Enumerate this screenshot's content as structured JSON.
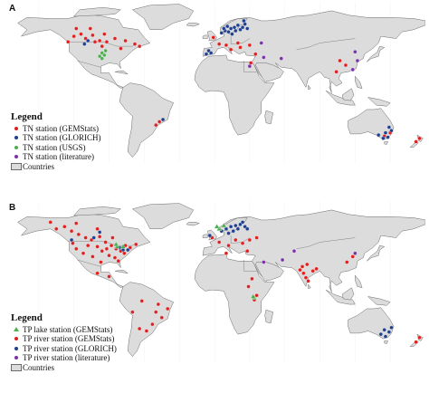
{
  "panel_a": {
    "label": "A",
    "legend_title": "Legend",
    "legend": [
      {
        "text": "TN station (GEMStats)",
        "color": "#e02020",
        "shape": "dot"
      },
      {
        "text": "TN station (GLORICH)",
        "color": "#1f3f8f",
        "shape": "dot"
      },
      {
        "text": "TN station (USGS)",
        "color": "#4caf50",
        "shape": "dot"
      },
      {
        "text": "TN station (literature)",
        "color": "#7b2fa8",
        "shape": "dot"
      },
      {
        "text": "Countries",
        "color": "#dcdcdc",
        "shape": "box"
      }
    ],
    "stations": [
      {
        "s": 0,
        "lon": -120,
        "lat": 54
      },
      {
        "s": 0,
        "lon": -114,
        "lat": 56
      },
      {
        "s": 0,
        "lon": -110,
        "lat": 52
      },
      {
        "s": 0,
        "lon": -104,
        "lat": 55
      },
      {
        "s": 0,
        "lon": -98,
        "lat": 50
      },
      {
        "s": 0,
        "lon": -118,
        "lat": 61
      },
      {
        "s": 0,
        "lon": -94,
        "lat": 56
      },
      {
        "s": 0,
        "lon": -106,
        "lat": 61
      },
      {
        "s": 0,
        "lon": -85,
        "lat": 52
      },
      {
        "s": 0,
        "lon": -76,
        "lat": 50
      },
      {
        "s": 0,
        "lon": -68,
        "lat": 47
      },
      {
        "s": 0,
        "lon": -64,
        "lat": 45
      },
      {
        "s": 0,
        "lon": -125,
        "lat": 49
      },
      {
        "s": 0,
        "lon": -92,
        "lat": 49
      },
      {
        "s": 0,
        "lon": -80,
        "lat": 43
      },
      {
        "s": 0,
        "lon": -102,
        "lat": 49
      },
      {
        "s": 0,
        "lon": -96,
        "lat": 45
      },
      {
        "s": 0,
        "lon": -1,
        "lat": 53
      },
      {
        "s": 0,
        "lon": 4,
        "lat": 47
      },
      {
        "s": 0,
        "lon": 10,
        "lat": 46
      },
      {
        "s": 0,
        "lon": 14,
        "lat": 42
      },
      {
        "s": 0,
        "lon": 20,
        "lat": 48
      },
      {
        "s": 0,
        "lon": 22,
        "lat": 44
      },
      {
        "s": 0,
        "lon": 30,
        "lat": 46
      },
      {
        "s": 0,
        "lon": 35,
        "lat": 38
      },
      {
        "s": 0,
        "lon": 31,
        "lat": 30
      },
      {
        "s": 0,
        "lon": 107,
        "lat": 32
      },
      {
        "s": 0,
        "lon": 112,
        "lat": 28
      },
      {
        "s": 0,
        "lon": 104,
        "lat": 22
      },
      {
        "s": 0,
        "lon": 145,
        "lat": -36
      },
      {
        "s": 0,
        "lon": 150,
        "lat": -33
      },
      {
        "s": 0,
        "lon": 172,
        "lat": -41
      },
      {
        "s": 0,
        "lon": 175,
        "lat": -38
      },
      {
        "s": 0,
        "lon": -47,
        "lat": -23
      },
      {
        "s": 0,
        "lon": -50,
        "lat": -26
      },
      {
        "s": 1,
        "lon": 6,
        "lat": 57
      },
      {
        "s": 1,
        "lon": 9,
        "lat": 59
      },
      {
        "s": 1,
        "lon": 12,
        "lat": 58
      },
      {
        "s": 1,
        "lon": 14,
        "lat": 61
      },
      {
        "s": 1,
        "lon": 17,
        "lat": 62
      },
      {
        "s": 1,
        "lon": 20,
        "lat": 64
      },
      {
        "s": 1,
        "lon": 24,
        "lat": 62
      },
      {
        "s": 1,
        "lon": 26,
        "lat": 65
      },
      {
        "s": 1,
        "lon": 15,
        "lat": 56
      },
      {
        "s": 1,
        "lon": 22,
        "lat": 60
      },
      {
        "s": 1,
        "lon": 11,
        "lat": 63
      },
      {
        "s": 1,
        "lon": 28,
        "lat": 61
      },
      {
        "s": 1,
        "lon": 18,
        "lat": 59
      },
      {
        "s": 1,
        "lon": 8,
        "lat": 61
      },
      {
        "s": 1,
        "lon": 25,
        "lat": 68
      },
      {
        "s": 1,
        "lon": -5,
        "lat": 41
      },
      {
        "s": 1,
        "lon": -3,
        "lat": 39
      },
      {
        "s": 1,
        "lon": -7,
        "lat": 38
      },
      {
        "s": 1,
        "lon": 140,
        "lat": -35
      },
      {
        "s": 1,
        "lon": 144,
        "lat": -38
      },
      {
        "s": 1,
        "lon": 148,
        "lat": -37
      },
      {
        "s": 1,
        "lon": 151,
        "lat": -31
      },
      {
        "s": 1,
        "lon": 146,
        "lat": -33
      },
      {
        "s": 1,
        "lon": 149,
        "lat": -28
      },
      {
        "s": 1,
        "lon": -108,
        "lat": 50
      },
      {
        "s": 1,
        "lon": -111,
        "lat": 47
      },
      {
        "s": 1,
        "lon": -44,
        "lat": -21
      },
      {
        "s": 2,
        "lon": -96,
        "lat": 39
      },
      {
        "s": 2,
        "lon": -94,
        "lat": 37
      },
      {
        "s": 2,
        "lon": -93,
        "lat": 41
      },
      {
        "s": 2,
        "lon": -98,
        "lat": 36
      },
      {
        "s": 2,
        "lon": -96,
        "lat": 34
      },
      {
        "s": 3,
        "lon": 42,
        "lat": 35
      },
      {
        "s": 3,
        "lon": 57,
        "lat": 34
      },
      {
        "s": 3,
        "lon": 120,
        "lat": 40
      },
      {
        "s": 3,
        "lon": 122,
        "lat": 32
      },
      {
        "s": 3,
        "lon": 118,
        "lat": 24
      },
      {
        "s": 3,
        "lon": 30,
        "lat": 27
      },
      {
        "s": 3,
        "lon": 40,
        "lat": 48
      }
    ]
  },
  "panel_b": {
    "label": "B",
    "legend_title": "Legend",
    "legend": [
      {
        "text": "TP lake station (GEMStats)",
        "color": "#4caf50",
        "shape": "triangle"
      },
      {
        "text": "TP river station (GEMStats)",
        "color": "#e02020",
        "shape": "dot"
      },
      {
        "text": "TP river station (GLORICH)",
        "color": "#1f3f8f",
        "shape": "dot"
      },
      {
        "text": "TP river station (literature)",
        "color": "#7b2fa8",
        "shape": "dot"
      },
      {
        "text": "Countries",
        "color": "#dcdcdc",
        "shape": "box"
      }
    ],
    "stations": [
      {
        "s": 1,
        "lon": -122,
        "lat": 58
      },
      {
        "s": 1,
        "lon": -116,
        "lat": 55
      },
      {
        "s": 1,
        "lon": -110,
        "lat": 52
      },
      {
        "s": 1,
        "lon": -105,
        "lat": 50
      },
      {
        "s": 1,
        "lon": -98,
        "lat": 53
      },
      {
        "s": 1,
        "lon": -93,
        "lat": 48
      },
      {
        "s": 1,
        "lon": -88,
        "lat": 45
      },
      {
        "s": 1,
        "lon": -84,
        "lat": 42
      },
      {
        "s": 1,
        "lon": -80,
        "lat": 40
      },
      {
        "s": 1,
        "lon": -77,
        "lat": 38
      },
      {
        "s": 1,
        "lon": -72,
        "lat": 43
      },
      {
        "s": 1,
        "lon": -67,
        "lat": 46
      },
      {
        "s": 1,
        "lon": -100,
        "lat": 44
      },
      {
        "s": 1,
        "lon": -96,
        "lat": 40
      },
      {
        "s": 1,
        "lon": -90,
        "lat": 36
      },
      {
        "s": 1,
        "lon": -85,
        "lat": 34
      },
      {
        "s": 1,
        "lon": -82,
        "lat": 31
      },
      {
        "s": 1,
        "lon": -97,
        "lat": 30
      },
      {
        "s": 1,
        "lon": -104,
        "lat": 35
      },
      {
        "s": 1,
        "lon": -112,
        "lat": 38
      },
      {
        "s": 1,
        "lon": -118,
        "lat": 42
      },
      {
        "s": 1,
        "lon": -121,
        "lat": 47
      },
      {
        "s": 1,
        "lon": -108,
        "lat": 45
      },
      {
        "s": 1,
        "lon": -92,
        "lat": 42
      },
      {
        "s": 1,
        "lon": -76,
        "lat": 45
      },
      {
        "s": 1,
        "lon": -128,
        "lat": 62
      },
      {
        "s": 1,
        "lon": -135,
        "lat": 60
      },
      {
        "s": 1,
        "lon": -140,
        "lat": 66
      },
      {
        "s": 1,
        "lon": -118,
        "lat": 65
      },
      {
        "s": 1,
        "lon": -100,
        "lat": 60
      },
      {
        "s": 1,
        "lon": -87,
        "lat": 52
      },
      {
        "s": 1,
        "lon": -100,
        "lat": 20
      },
      {
        "s": 1,
        "lon": -90,
        "lat": 17
      },
      {
        "s": 1,
        "lon": -62,
        "lat": -5
      },
      {
        "s": 1,
        "lon": -50,
        "lat": -15
      },
      {
        "s": 1,
        "lon": -45,
        "lat": -20
      },
      {
        "s": 1,
        "lon": -53,
        "lat": -26
      },
      {
        "s": 1,
        "lon": -58,
        "lat": -32
      },
      {
        "s": 1,
        "lon": -64,
        "lat": -30
      },
      {
        "s": 1,
        "lon": -48,
        "lat": -8
      },
      {
        "s": 1,
        "lon": -40,
        "lat": -12
      },
      {
        "s": 1,
        "lon": -70,
        "lat": -15
      },
      {
        "s": 1,
        "lon": -2,
        "lat": 52
      },
      {
        "s": 1,
        "lon": 4,
        "lat": 48
      },
      {
        "s": 1,
        "lon": 12,
        "lat": 45
      },
      {
        "s": 1,
        "lon": 18,
        "lat": 50
      },
      {
        "s": 1,
        "lon": 24,
        "lat": 47
      },
      {
        "s": 1,
        "lon": 30,
        "lat": 50
      },
      {
        "s": 1,
        "lon": 36,
        "lat": 52
      },
      {
        "s": 1,
        "lon": 10,
        "lat": 38
      },
      {
        "s": 1,
        "lon": 28,
        "lat": 40
      },
      {
        "s": 1,
        "lon": 73,
        "lat": 23
      },
      {
        "s": 1,
        "lon": 76,
        "lat": 20
      },
      {
        "s": 1,
        "lon": 78,
        "lat": 16
      },
      {
        "s": 1,
        "lon": 80,
        "lat": 13
      },
      {
        "s": 1,
        "lon": 84,
        "lat": 22
      },
      {
        "s": 1,
        "lon": 87,
        "lat": 24
      },
      {
        "s": 1,
        "lon": 75,
        "lat": 26
      },
      {
        "s": 1,
        "lon": 79,
        "lat": 28
      },
      {
        "s": 1,
        "lon": 32,
        "lat": 15
      },
      {
        "s": 1,
        "lon": 36,
        "lat": 0
      },
      {
        "s": 1,
        "lon": 34,
        "lat": -4
      },
      {
        "s": 1,
        "lon": 29,
        "lat": 8
      },
      {
        "s": 1,
        "lon": 113,
        "lat": 30
      },
      {
        "s": 1,
        "lon": 175,
        "lat": -38
      },
      {
        "s": 1,
        "lon": 172,
        "lat": -42
      },
      {
        "s": 1,
        "lon": 118,
        "lat": 35
      },
      {
        "s": 2,
        "lon": 6,
        "lat": 58
      },
      {
        "s": 2,
        "lon": 10,
        "lat": 60
      },
      {
        "s": 2,
        "lon": 14,
        "lat": 62
      },
      {
        "s": 2,
        "lon": 18,
        "lat": 63
      },
      {
        "s": 2,
        "lon": 22,
        "lat": 64
      },
      {
        "s": 2,
        "lon": 26,
        "lat": 62
      },
      {
        "s": 2,
        "lon": 16,
        "lat": 58
      },
      {
        "s": 2,
        "lon": 20,
        "lat": 60
      },
      {
        "s": 2,
        "lon": 24,
        "lat": 66
      },
      {
        "s": 2,
        "lon": 12,
        "lat": 56
      },
      {
        "s": 2,
        "lon": 28,
        "lat": 60
      },
      {
        "s": 2,
        "lon": -4,
        "lat": 54
      },
      {
        "s": 2,
        "lon": -98,
        "lat": 57
      },
      {
        "s": 2,
        "lon": -103,
        "lat": 52
      },
      {
        "s": 2,
        "lon": -122,
        "lat": 50
      },
      {
        "s": 2,
        "lon": -78,
        "lat": 41
      },
      {
        "s": 2,
        "lon": -81,
        "lat": 43
      },
      {
        "s": 2,
        "lon": -74,
        "lat": 41
      },
      {
        "s": 2,
        "lon": 142,
        "lat": -35
      },
      {
        "s": 2,
        "lon": 146,
        "lat": -37
      },
      {
        "s": 2,
        "lon": 149,
        "lat": -33
      },
      {
        "s": 2,
        "lon": 151,
        "lat": -29
      },
      {
        "s": 2,
        "lon": 145,
        "lat": -31
      },
      {
        "s": 0,
        "lon": 4,
        "lat": 60
      },
      {
        "s": 0,
        "lon": 8,
        "lat": 63
      },
      {
        "s": 0,
        "lon": 2,
        "lat": 62
      },
      {
        "s": 0,
        "lon": 34,
        "lat": -2
      },
      {
        "s": 0,
        "lon": 33,
        "lat": -1
      },
      {
        "s": 0,
        "lon": -83,
        "lat": 44
      },
      {
        "s": 0,
        "lon": -84,
        "lat": 46
      },
      {
        "s": 0,
        "lon": -78,
        "lat": 44
      },
      {
        "s": 3,
        "lon": 58,
        "lat": 32
      },
      {
        "s": 3,
        "lon": 120,
        "lat": 38
      },
      {
        "s": 3,
        "lon": 68,
        "lat": 40
      },
      {
        "s": 3,
        "lon": 42,
        "lat": 30
      }
    ]
  }
}
